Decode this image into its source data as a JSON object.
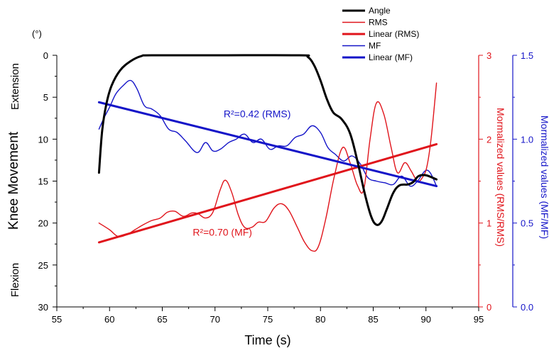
{
  "chart_data": {
    "type": "line",
    "xlabel": "Time (s)",
    "x_ticks": [
      55,
      60,
      65,
      70,
      75,
      80,
      85,
      90,
      95
    ],
    "left_axis": {
      "title": "Knee Movement",
      "unit": "(°)",
      "top_label": "Extension",
      "bottom_label": "Flexion",
      "range": [
        0,
        30
      ],
      "reversed": true,
      "ticks": [
        0,
        5,
        10,
        15,
        20,
        25,
        30
      ],
      "color": "#000000"
    },
    "right_axis_1": {
      "title": "Mormalized values (RMS/RMS)",
      "range": [
        0,
        3
      ],
      "ticks": [
        0,
        1,
        2,
        3
      ],
      "color": "#e0141b"
    },
    "right_axis_2": {
      "title": "Mormalized values (MF/MF)",
      "range": [
        0.0,
        1.5
      ],
      "ticks": [
        "0.0",
        "0.5",
        "1.0",
        "1.5"
      ],
      "color": "#1414c8"
    },
    "series": [
      {
        "name": "Angle",
        "color": "#000000",
        "axis": "left",
        "points": [
          [
            59,
            14
          ],
          [
            59.3,
            9
          ],
          [
            59.7,
            5.8
          ],
          [
            60.2,
            3.6
          ],
          [
            61,
            1.8
          ],
          [
            62,
            0.7
          ],
          [
            63,
            0.1
          ],
          [
            64,
            0
          ],
          [
            70,
            0
          ],
          [
            78,
            0
          ],
          [
            78.8,
            0.2
          ],
          [
            79.4,
            1.2
          ],
          [
            80,
            3
          ],
          [
            80.6,
            5.2
          ],
          [
            81.2,
            6.8
          ],
          [
            82,
            7.6
          ],
          [
            82.8,
            9.3
          ],
          [
            83.5,
            12.6
          ],
          [
            84.2,
            16.5
          ],
          [
            84.8,
            19.2
          ],
          [
            85.3,
            20.2
          ],
          [
            85.8,
            19.8
          ],
          [
            86.3,
            18.3
          ],
          [
            86.9,
            16.4
          ],
          [
            87.5,
            15.5
          ],
          [
            88.3,
            15.4
          ],
          [
            88.8,
            15.1
          ],
          [
            89.3,
            14.4
          ],
          [
            90,
            14.3
          ],
          [
            91,
            14.8
          ]
        ]
      },
      {
        "name": "RMS",
        "color": "#e0141b",
        "axis": "right_1",
        "points": [
          [
            59,
            1.0
          ],
          [
            60,
            0.92
          ],
          [
            60.8,
            0.84
          ],
          [
            61.6,
            0.86
          ],
          [
            62.4,
            0.92
          ],
          [
            63.2,
            0.98
          ],
          [
            64,
            1.03
          ],
          [
            64.8,
            1.06
          ],
          [
            65.5,
            1.13
          ],
          [
            66.2,
            1.14
          ],
          [
            67,
            1.08
          ],
          [
            67.8,
            1.12
          ],
          [
            68.4,
            1.11
          ],
          [
            69.1,
            1.06
          ],
          [
            69.8,
            1.13
          ],
          [
            70.5,
            1.4
          ],
          [
            71,
            1.51
          ],
          [
            71.6,
            1.36
          ],
          [
            72.2,
            1.1
          ],
          [
            72.8,
            0.95
          ],
          [
            73.5,
            0.95
          ],
          [
            74.1,
            1.01
          ],
          [
            74.8,
            1.02
          ],
          [
            75.6,
            1.18
          ],
          [
            76.3,
            1.23
          ],
          [
            77,
            1.15
          ],
          [
            77.8,
            0.95
          ],
          [
            78.5,
            0.77
          ],
          [
            79.2,
            0.67
          ],
          [
            79.8,
            0.72
          ],
          [
            80.5,
            1.05
          ],
          [
            81.3,
            1.55
          ],
          [
            82.1,
            1.9
          ],
          [
            82.8,
            1.72
          ],
          [
            83.5,
            1.45
          ],
          [
            84.1,
            1.4
          ],
          [
            84.7,
            2.0
          ],
          [
            85.3,
            2.43
          ],
          [
            86,
            2.3
          ],
          [
            86.7,
            1.9
          ],
          [
            87.3,
            1.6
          ],
          [
            88,
            1.72
          ],
          [
            88.6,
            1.62
          ],
          [
            89.2,
            1.5
          ],
          [
            89.7,
            1.55
          ],
          [
            90.1,
            1.68
          ],
          [
            90.5,
            2.02
          ],
          [
            91,
            2.67
          ]
        ]
      },
      {
        "name": "Linear (RMS)",
        "color": "#e0141b",
        "axis": "right_1",
        "linear": true,
        "points": [
          [
            59,
            0.77
          ],
          [
            91,
            1.94
          ]
        ]
      },
      {
        "name": "MF",
        "color": "#1414c8",
        "axis": "right_2",
        "points": [
          [
            59,
            1.06
          ],
          [
            59.5,
            1.13
          ],
          [
            60,
            1.19
          ],
          [
            60.6,
            1.27
          ],
          [
            61.3,
            1.32
          ],
          [
            62,
            1.35
          ],
          [
            62.6,
            1.3
          ],
          [
            63.3,
            1.2
          ],
          [
            64,
            1.18
          ],
          [
            64.8,
            1.14
          ],
          [
            65.6,
            1.06
          ],
          [
            66.4,
            1.04
          ],
          [
            67.2,
            0.99
          ],
          [
            68.3,
            0.92
          ],
          [
            69.1,
            0.98
          ],
          [
            69.8,
            0.93
          ],
          [
            70.5,
            0.94
          ],
          [
            71.3,
            0.98
          ],
          [
            72,
            1.0
          ],
          [
            72.8,
            1.03
          ],
          [
            73.6,
            0.98
          ],
          [
            74.4,
            1.0
          ],
          [
            75.2,
            0.94
          ],
          [
            76,
            0.96
          ],
          [
            76.8,
            0.96
          ],
          [
            77.6,
            1.01
          ],
          [
            78.4,
            1.03
          ],
          [
            79.2,
            1.08
          ],
          [
            80,
            1.04
          ],
          [
            80.7,
            0.95
          ],
          [
            81.4,
            0.91
          ],
          [
            82.2,
            0.87
          ],
          [
            83,
            0.9
          ],
          [
            83.8,
            0.85
          ],
          [
            84.5,
            0.77
          ],
          [
            85.3,
            0.75
          ],
          [
            86.1,
            0.74
          ],
          [
            86.9,
            0.73
          ],
          [
            87.7,
            0.78
          ],
          [
            88.5,
            0.72
          ],
          [
            89.2,
            0.75
          ],
          [
            89.9,
            0.81
          ],
          [
            90.4,
            0.8
          ],
          [
            91,
            0.72
          ]
        ]
      },
      {
        "name": "Linear (MF)",
        "color": "#1414c8",
        "axis": "right_2",
        "linear": true,
        "points": [
          [
            59,
            1.22
          ],
          [
            91,
            0.72
          ]
        ]
      }
    ],
    "legend": {
      "position": "top-right",
      "entries": [
        {
          "label": "Angle",
          "color": "#000000",
          "bold": true
        },
        {
          "label": "RMS",
          "color": "#e0141b",
          "bold": false
        },
        {
          "label": "Linear (RMS)",
          "color": "#e0141b",
          "bold": true
        },
        {
          "label": "MF",
          "color": "#1414c8",
          "bold": false
        },
        {
          "label": "Linear (MF)",
          "color": "#1414c8",
          "bold": true
        }
      ]
    },
    "annotations": [
      {
        "text": "R²=0.42 (RMS)",
        "color": "#1414c8",
        "x": 74,
        "axis": "right_2",
        "y": 1.13
      },
      {
        "text": "R²=0.70 (MF)",
        "color": "#e0141b",
        "x": 70.7,
        "axis": "right_1",
        "y": 0.85
      }
    ],
    "grid": false
  }
}
